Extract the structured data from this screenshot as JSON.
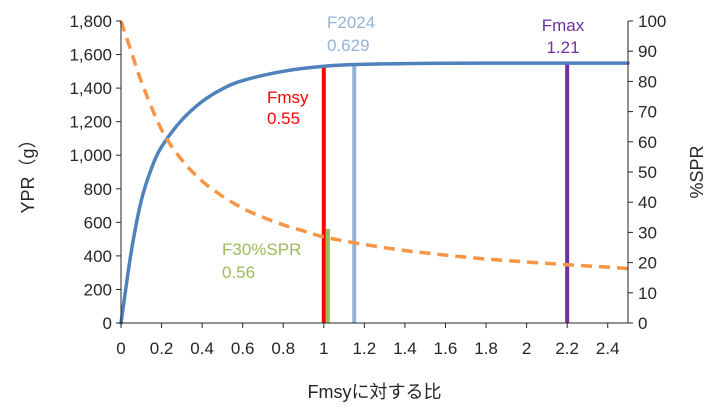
{
  "chart_data": {
    "type": "line",
    "title": "",
    "xlabel": "Fmsyに対する比",
    "ylabel": "YPR（g）",
    "y2label": "%SPR",
    "xlim": [
      0,
      2.5
    ],
    "ylim": [
      0,
      1800
    ],
    "y2lim": [
      0,
      100
    ],
    "xticks": [
      "0",
      "0.2",
      "0.4",
      "0.6",
      "0.8",
      "1",
      "1.2",
      "1.4",
      "1.6",
      "1.8",
      "2",
      "2.2",
      "2.4"
    ],
    "yticks": [
      "0",
      "200",
      "400",
      "600",
      "800",
      "1,000",
      "1,200",
      "1,400",
      "1,600",
      "1,800"
    ],
    "y2ticks": [
      "0",
      "10",
      "20",
      "30",
      "40",
      "50",
      "60",
      "70",
      "80",
      "90",
      "100"
    ],
    "grid": false,
    "legend": "none",
    "series": [
      {
        "axis": "left",
        "color": "#4f81bd",
        "style": "solid",
        "x": [
          0,
          0.05,
          0.1,
          0.15,
          0.2,
          0.3,
          0.4,
          0.5,
          0.6,
          0.8,
          1.0,
          1.2,
          1.4,
          1.6,
          1.8,
          2.0,
          2.2,
          2.4,
          2.5
        ],
        "y": [
          0,
          420,
          730,
          920,
          1050,
          1210,
          1320,
          1395,
          1445,
          1500,
          1530,
          1542,
          1546,
          1548,
          1549,
          1549,
          1549,
          1549,
          1549
        ]
      },
      {
        "axis": "right",
        "color": "#f79646",
        "style": "dashed",
        "x": [
          0,
          0.05,
          0.1,
          0.2,
          0.3,
          0.4,
          0.5,
          0.6,
          0.7,
          0.8,
          0.9,
          1.0,
          1.2,
          1.4,
          1.6,
          1.8,
          2.0,
          2.2,
          2.4,
          2.5
        ],
        "y": [
          100,
          90,
          80,
          64,
          54,
          47,
          42,
          38,
          35,
          32.5,
          30.5,
          28.5,
          26,
          24,
          22.5,
          21.2,
          20.2,
          19.3,
          18.5,
          18
        ]
      }
    ],
    "reference_lines": [
      {
        "x": 1.0,
        "color": "#ff0000",
        "y_top": 1530,
        "label": "Fmsy",
        "value": "0.55"
      },
      {
        "x": 1.02,
        "color": "#9bbb59",
        "y_top": 560,
        "label": "F30%SPR",
        "value": "0.56"
      },
      {
        "x": 1.15,
        "color": "#95b3d7",
        "y_top": 1545,
        "label": "F2024",
        "value": "0.629"
      },
      {
        "x": 2.2,
        "color": "#7030a0",
        "y_top": 1549,
        "label": "Fmax",
        "value": "1.21"
      }
    ]
  }
}
